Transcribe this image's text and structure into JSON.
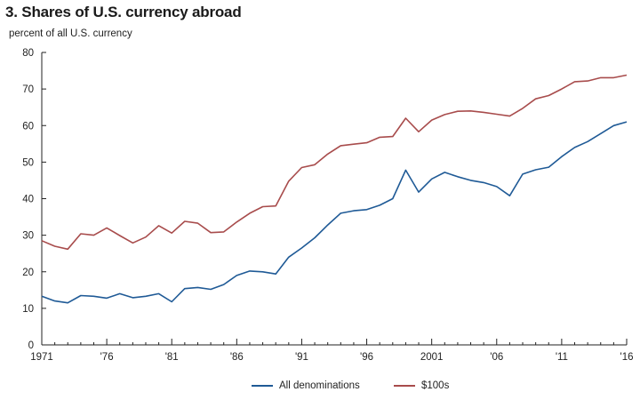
{
  "chart_data": {
    "type": "line",
    "title": "3. Shares of U.S. currency abroad",
    "ylabel": "percent of all U.S. currency",
    "xlabel": "",
    "ylim": [
      0,
      80
    ],
    "xlim": [
      1971,
      2016
    ],
    "yticks": [
      0,
      10,
      20,
      30,
      40,
      50,
      60,
      70,
      80
    ],
    "xticks": [
      {
        "x": 1971,
        "label": "1971"
      },
      {
        "x": 1976,
        "label": "'76"
      },
      {
        "x": 1981,
        "label": "'81"
      },
      {
        "x": 1986,
        "label": "'86"
      },
      {
        "x": 1991,
        "label": "'91"
      },
      {
        "x": 1996,
        "label": "'96"
      },
      {
        "x": 2001,
        "label": "2001"
      },
      {
        "x": 2006,
        "label": "'06"
      },
      {
        "x": 2011,
        "label": "'11"
      },
      {
        "x": 2016,
        "label": "'16"
      }
    ],
    "grid": false,
    "legend_position": "bottom",
    "x": [
      1971,
      1972,
      1973,
      1974,
      1975,
      1976,
      1977,
      1978,
      1979,
      1980,
      1981,
      1982,
      1983,
      1984,
      1985,
      1986,
      1987,
      1988,
      1989,
      1990,
      1991,
      1992,
      1993,
      1994,
      1995,
      1996,
      1997,
      1998,
      1999,
      2000,
      2001,
      2002,
      2003,
      2004,
      2005,
      2006,
      2007,
      2008,
      2009,
      2010,
      2011,
      2012,
      2013,
      2014,
      2015,
      2016
    ],
    "series": [
      {
        "name": "All denominations",
        "color": "#1f5a96",
        "values": [
          13.3,
          12,
          11.5,
          13.5,
          13.3,
          12.8,
          14,
          12.9,
          13.3,
          14,
          11.8,
          15.4,
          15.7,
          15.2,
          16.5,
          19,
          20.2,
          20,
          19.4,
          24,
          26.5,
          29.3,
          32.8,
          36,
          36.7,
          37,
          38.2,
          40,
          47.8,
          41.8,
          45.4,
          47.2,
          46,
          45,
          44.4,
          43.3,
          40.8,
          46.7,
          47.9,
          48.6,
          51.5,
          54,
          55.6,
          57.8,
          60,
          61
        ]
      },
      {
        "name": "$100s",
        "color": "#a84c4c",
        "values": [
          28.5,
          27,
          26.2,
          30.4,
          30,
          32,
          29.9,
          27.9,
          29.5,
          32.6,
          30.6,
          33.8,
          33.3,
          30.7,
          30.9,
          33.6,
          36,
          37.8,
          38,
          44.8,
          48.5,
          49.3,
          52.2,
          54.5,
          54.9,
          55.3,
          56.8,
          57,
          62,
          58.3,
          61.5,
          63,
          63.9,
          64,
          63.6,
          63.1,
          62.6,
          64.7,
          67.3,
          68.2,
          70,
          72,
          72.2,
          73.1,
          73.1,
          73.8
        ]
      }
    ]
  }
}
